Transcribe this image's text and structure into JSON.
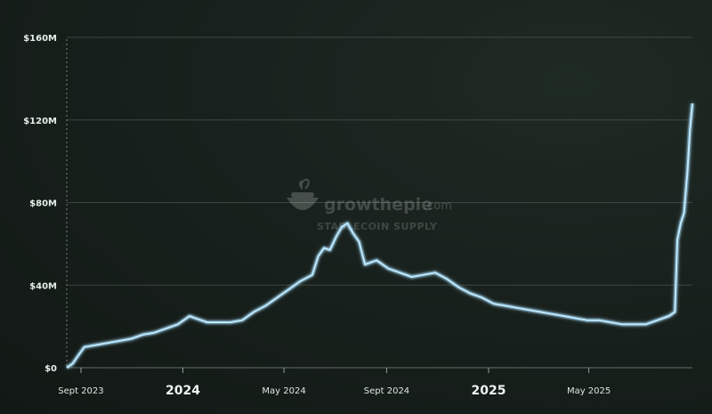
{
  "watermark": {
    "brand": "growthepie",
    "brand_suffix": ".com",
    "subtitle": "STABLECOIN SUPPLY",
    "logo_icon": "pie-logo-icon"
  },
  "chart_data": {
    "type": "area",
    "title": "STABLECOIN SUPPLY",
    "xlabel": "",
    "ylabel": "",
    "y_ticks": [
      "$0",
      "$40M",
      "$80M",
      "$120M",
      "$160M"
    ],
    "y_tick_values": [
      0,
      40,
      80,
      120,
      160
    ],
    "ylim": [
      0,
      160
    ],
    "y_unit": "USD millions",
    "xlim": [
      "2023-08-15",
      "2025-09-02"
    ],
    "x_ticks": [
      {
        "label": "Sept 2023",
        "date": "2023-09-01",
        "major": false
      },
      {
        "label": "2024",
        "date": "2024-01-01",
        "major": true
      },
      {
        "label": "May 2024",
        "date": "2024-05-01",
        "major": false
      },
      {
        "label": "Sept 2024",
        "date": "2024-09-01",
        "major": false
      },
      {
        "label": "2025",
        "date": "2025-01-01",
        "major": true
      },
      {
        "label": "May 2025",
        "date": "2025-05-01",
        "major": false
      }
    ],
    "grid": true,
    "line_color": "#bfe9ff",
    "series": [
      {
        "points": [
          [
            "2023-08-15",
            0
          ],
          [
            "2023-08-22",
            2
          ],
          [
            "2023-08-29",
            6
          ],
          [
            "2023-09-05",
            10
          ],
          [
            "2023-09-19",
            11
          ],
          [
            "2023-10-03",
            12
          ],
          [
            "2023-10-17",
            13
          ],
          [
            "2023-10-31",
            14
          ],
          [
            "2023-11-14",
            16
          ],
          [
            "2023-11-28",
            17
          ],
          [
            "2023-12-12",
            19
          ],
          [
            "2023-12-26",
            21
          ],
          [
            "2024-01-09",
            25
          ],
          [
            "2024-01-16",
            24
          ],
          [
            "2024-01-30",
            22
          ],
          [
            "2024-02-13",
            22
          ],
          [
            "2024-02-27",
            22
          ],
          [
            "2024-03-12",
            23
          ],
          [
            "2024-03-26",
            27
          ],
          [
            "2024-04-09",
            30
          ],
          [
            "2024-04-23",
            34
          ],
          [
            "2024-05-07",
            38
          ],
          [
            "2024-05-21",
            42
          ],
          [
            "2024-06-04",
            45
          ],
          [
            "2024-06-11",
            54
          ],
          [
            "2024-06-18",
            58
          ],
          [
            "2024-06-25",
            57
          ],
          [
            "2024-07-02",
            63
          ],
          [
            "2024-07-09",
            68
          ],
          [
            "2024-07-16",
            70
          ],
          [
            "2024-07-23",
            65
          ],
          [
            "2024-07-30",
            61
          ],
          [
            "2024-08-06",
            50
          ],
          [
            "2024-08-20",
            52
          ],
          [
            "2024-09-03",
            48
          ],
          [
            "2024-09-17",
            46
          ],
          [
            "2024-10-01",
            44
          ],
          [
            "2024-10-15",
            45
          ],
          [
            "2024-10-29",
            46
          ],
          [
            "2024-11-12",
            43
          ],
          [
            "2024-11-26",
            39
          ],
          [
            "2024-12-10",
            36
          ],
          [
            "2024-12-24",
            34
          ],
          [
            "2025-01-07",
            31
          ],
          [
            "2025-01-21",
            30
          ],
          [
            "2025-02-04",
            29
          ],
          [
            "2025-02-18",
            28
          ],
          [
            "2025-03-04",
            27
          ],
          [
            "2025-03-18",
            26
          ],
          [
            "2025-04-01",
            25
          ],
          [
            "2025-04-15",
            24
          ],
          [
            "2025-04-29",
            23
          ],
          [
            "2025-05-13",
            23
          ],
          [
            "2025-05-27",
            22
          ],
          [
            "2025-06-10",
            21
          ],
          [
            "2025-06-24",
            21
          ],
          [
            "2025-07-08",
            21
          ],
          [
            "2025-07-22",
            23
          ],
          [
            "2025-08-05",
            25
          ],
          [
            "2025-08-12",
            27
          ],
          [
            "2025-08-15",
            62
          ],
          [
            "2025-08-19",
            70
          ],
          [
            "2025-08-23",
            75
          ],
          [
            "2025-08-27",
            95
          ],
          [
            "2025-08-30",
            115
          ],
          [
            "2025-09-02",
            128
          ]
        ]
      }
    ]
  }
}
